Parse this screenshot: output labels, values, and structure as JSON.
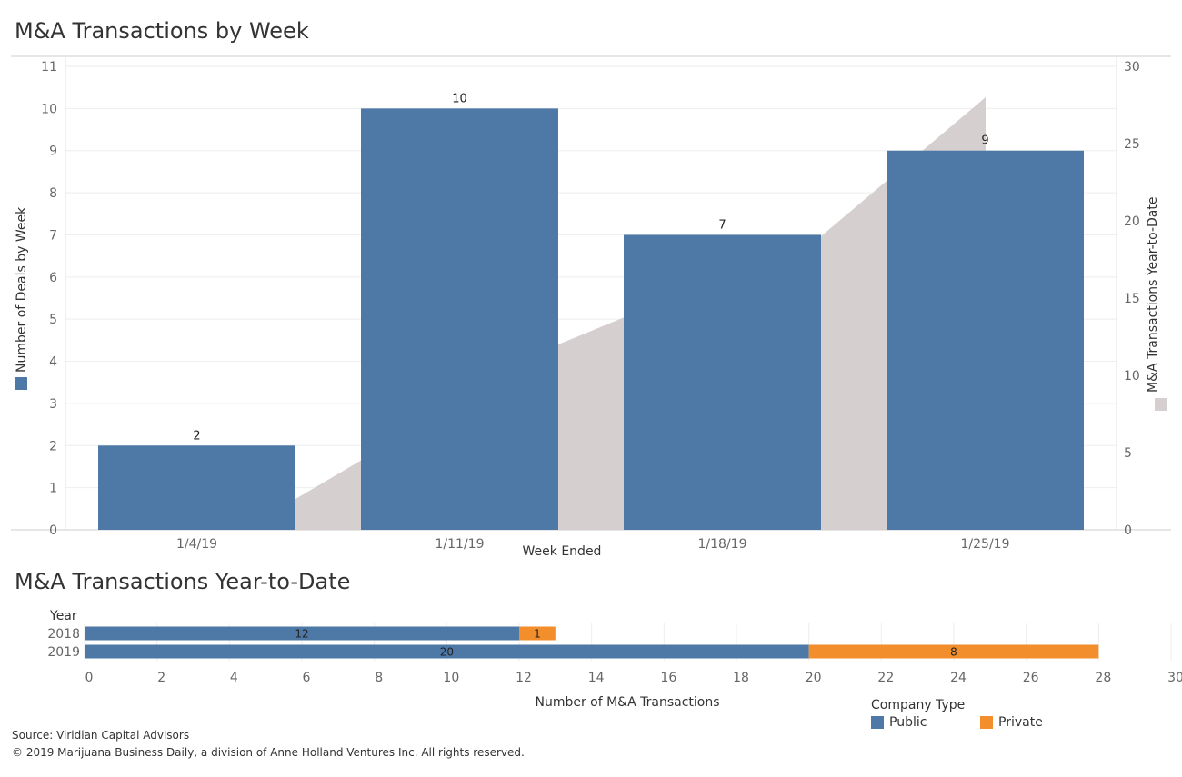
{
  "colors": {
    "public": "#4e79a7",
    "private": "#f28e2b",
    "ytd_area": "#d5cfcf",
    "gridline": "#eeeeee",
    "axis_line": "#cccccc"
  },
  "chart_data": [
    {
      "type": "bar",
      "title": "M&A Transactions by Week",
      "categories": [
        "1/4/19",
        "1/11/19",
        "1/18/19",
        "1/25/19"
      ],
      "xlabel": "Week Ended",
      "ylabel": "Number of Deals by Week",
      "y2label": "M&A Transactions Year-to-Date",
      "ylim": [
        0,
        11
      ],
      "y2lim": [
        0,
        30
      ],
      "y_ticks": [
        0,
        1,
        2,
        3,
        4,
        5,
        6,
        7,
        8,
        9,
        10,
        11
      ],
      "y2_ticks": [
        0,
        5,
        10,
        15,
        20,
        25,
        30
      ],
      "series": [
        {
          "name": "Number of Deals by Week",
          "type": "bar",
          "axis": "left",
          "values": [
            2,
            10,
            7,
            9
          ]
        },
        {
          "name": "M&A Transactions Year-to-Date",
          "type": "area",
          "axis": "right",
          "values": [
            2,
            12,
            19,
            28
          ]
        }
      ],
      "grid": true
    },
    {
      "type": "bar",
      "orientation": "horizontal",
      "stacked": true,
      "title": "M&A Transactions Year-to-Date",
      "y_header": "Year",
      "categories": [
        "2018",
        "2019"
      ],
      "xlabel": "Number of M&A Transactions",
      "xlim": [
        0,
        30
      ],
      "x_ticks": [
        0,
        2,
        4,
        6,
        8,
        10,
        12,
        14,
        16,
        18,
        20,
        22,
        24,
        26,
        28,
        30
      ],
      "series": [
        {
          "name": "Public",
          "values": [
            12,
            20
          ]
        },
        {
          "name": "Private",
          "values": [
            1,
            8
          ]
        }
      ],
      "legend": {
        "title": "Company Type",
        "position": "bottom-right"
      }
    }
  ],
  "footer": {
    "source": "Source: Viridian Capital Advisors",
    "copyright": "© 2019 Marijuana Business Daily, a division of Anne Holland Ventures Inc. All rights reserved."
  }
}
